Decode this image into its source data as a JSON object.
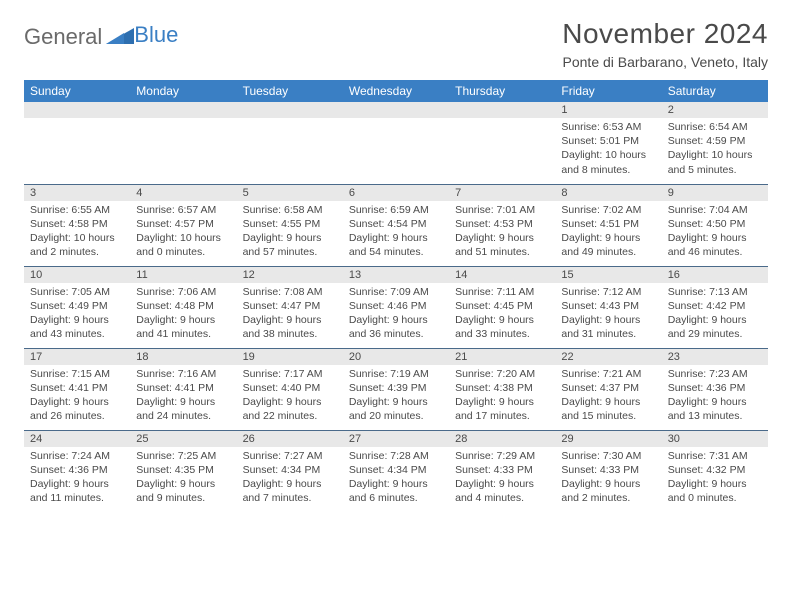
{
  "brand": {
    "first": "General",
    "second": "Blue"
  },
  "title": "November 2024",
  "location": "Ponte di Barbarano, Veneto, Italy",
  "colors": {
    "header_bg": "#3a7fc4",
    "header_text": "#ffffff",
    "daynum_bg": "#e8e8e8",
    "border": "#4a6a8a",
    "text": "#4a4a4a",
    "brand_gray": "#6a6a6a",
    "brand_blue": "#3a7fc4"
  },
  "weekdays": [
    "Sunday",
    "Monday",
    "Tuesday",
    "Wednesday",
    "Thursday",
    "Friday",
    "Saturday"
  ],
  "weeks": [
    [
      null,
      null,
      null,
      null,
      null,
      {
        "n": "1",
        "sunrise": "6:53 AM",
        "sunset": "5:01 PM",
        "daylight": "10 hours and 8 minutes."
      },
      {
        "n": "2",
        "sunrise": "6:54 AM",
        "sunset": "4:59 PM",
        "daylight": "10 hours and 5 minutes."
      }
    ],
    [
      {
        "n": "3",
        "sunrise": "6:55 AM",
        "sunset": "4:58 PM",
        "daylight": "10 hours and 2 minutes."
      },
      {
        "n": "4",
        "sunrise": "6:57 AM",
        "sunset": "4:57 PM",
        "daylight": "10 hours and 0 minutes."
      },
      {
        "n": "5",
        "sunrise": "6:58 AM",
        "sunset": "4:55 PM",
        "daylight": "9 hours and 57 minutes."
      },
      {
        "n": "6",
        "sunrise": "6:59 AM",
        "sunset": "4:54 PM",
        "daylight": "9 hours and 54 minutes."
      },
      {
        "n": "7",
        "sunrise": "7:01 AM",
        "sunset": "4:53 PM",
        "daylight": "9 hours and 51 minutes."
      },
      {
        "n": "8",
        "sunrise": "7:02 AM",
        "sunset": "4:51 PM",
        "daylight": "9 hours and 49 minutes."
      },
      {
        "n": "9",
        "sunrise": "7:04 AM",
        "sunset": "4:50 PM",
        "daylight": "9 hours and 46 minutes."
      }
    ],
    [
      {
        "n": "10",
        "sunrise": "7:05 AM",
        "sunset": "4:49 PM",
        "daylight": "9 hours and 43 minutes."
      },
      {
        "n": "11",
        "sunrise": "7:06 AM",
        "sunset": "4:48 PM",
        "daylight": "9 hours and 41 minutes."
      },
      {
        "n": "12",
        "sunrise": "7:08 AM",
        "sunset": "4:47 PM",
        "daylight": "9 hours and 38 minutes."
      },
      {
        "n": "13",
        "sunrise": "7:09 AM",
        "sunset": "4:46 PM",
        "daylight": "9 hours and 36 minutes."
      },
      {
        "n": "14",
        "sunrise": "7:11 AM",
        "sunset": "4:45 PM",
        "daylight": "9 hours and 33 minutes."
      },
      {
        "n": "15",
        "sunrise": "7:12 AM",
        "sunset": "4:43 PM",
        "daylight": "9 hours and 31 minutes."
      },
      {
        "n": "16",
        "sunrise": "7:13 AM",
        "sunset": "4:42 PM",
        "daylight": "9 hours and 29 minutes."
      }
    ],
    [
      {
        "n": "17",
        "sunrise": "7:15 AM",
        "sunset": "4:41 PM",
        "daylight": "9 hours and 26 minutes."
      },
      {
        "n": "18",
        "sunrise": "7:16 AM",
        "sunset": "4:41 PM",
        "daylight": "9 hours and 24 minutes."
      },
      {
        "n": "19",
        "sunrise": "7:17 AM",
        "sunset": "4:40 PM",
        "daylight": "9 hours and 22 minutes."
      },
      {
        "n": "20",
        "sunrise": "7:19 AM",
        "sunset": "4:39 PM",
        "daylight": "9 hours and 20 minutes."
      },
      {
        "n": "21",
        "sunrise": "7:20 AM",
        "sunset": "4:38 PM",
        "daylight": "9 hours and 17 minutes."
      },
      {
        "n": "22",
        "sunrise": "7:21 AM",
        "sunset": "4:37 PM",
        "daylight": "9 hours and 15 minutes."
      },
      {
        "n": "23",
        "sunrise": "7:23 AM",
        "sunset": "4:36 PM",
        "daylight": "9 hours and 13 minutes."
      }
    ],
    [
      {
        "n": "24",
        "sunrise": "7:24 AM",
        "sunset": "4:36 PM",
        "daylight": "9 hours and 11 minutes."
      },
      {
        "n": "25",
        "sunrise": "7:25 AM",
        "sunset": "4:35 PM",
        "daylight": "9 hours and 9 minutes."
      },
      {
        "n": "26",
        "sunrise": "7:27 AM",
        "sunset": "4:34 PM",
        "daylight": "9 hours and 7 minutes."
      },
      {
        "n": "27",
        "sunrise": "7:28 AM",
        "sunset": "4:34 PM",
        "daylight": "9 hours and 6 minutes."
      },
      {
        "n": "28",
        "sunrise": "7:29 AM",
        "sunset": "4:33 PM",
        "daylight": "9 hours and 4 minutes."
      },
      {
        "n": "29",
        "sunrise": "7:30 AM",
        "sunset": "4:33 PM",
        "daylight": "9 hours and 2 minutes."
      },
      {
        "n": "30",
        "sunrise": "7:31 AM",
        "sunset": "4:32 PM",
        "daylight": "9 hours and 0 minutes."
      }
    ]
  ],
  "labels": {
    "sunrise": "Sunrise:",
    "sunset": "Sunset:",
    "daylight": "Daylight:"
  }
}
